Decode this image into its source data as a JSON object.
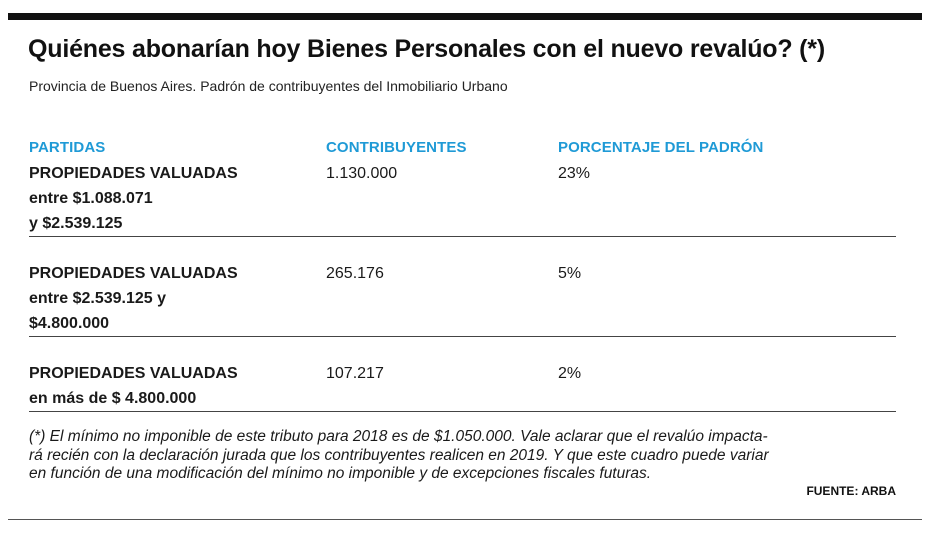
{
  "title": "Quiénes abonarían hoy Bienes Personales con el nuevo revalúo? (*)",
  "subtitle": "Provincia de Buenos Aires. Padrón de contribuyentes del Inmobiliario Urbano",
  "table": {
    "headers": {
      "partidas": "PARTIDAS",
      "contribuyentes": "CONTRIBUYENTES",
      "porcentaje": "PORCENTAJE DEL PADRÓN"
    },
    "rows": [
      {
        "partida_lines": [
          "PROPIEDADES VALUADAS",
          "entre $1.088.071",
          "y $2.539.125"
        ],
        "contribuyentes": "1.130.000",
        "porcentaje": "23%"
      },
      {
        "partida_lines": [
          "PROPIEDADES VALUADAS",
          "entre $2.539.125 y",
          "$4.800.000"
        ],
        "contribuyentes": "265.176",
        "porcentaje": "5%"
      },
      {
        "partida_lines": [
          "PROPIEDADES VALUADAS",
          "en más de $ 4.800.000"
        ],
        "contribuyentes": "107.217",
        "porcentaje": "2%"
      }
    ]
  },
  "note_lines": [
    "(*) El mínimo no imponible de este tributo para 2018 es de $1.050.000. Vale aclarar que el revalúo impacta-",
    "rá recién con la declaración jurada que los contribuyentes realicen en 2019. Y que este cuadro puede variar",
    "en función de una modificación del mínimo no imponible y de excepciones fiscales futuras."
  ],
  "source": "FUENTE: ARBA",
  "colors": {
    "header_accent": "#1f9ad6",
    "text": "#1a1a1a",
    "rule": "#111111"
  }
}
